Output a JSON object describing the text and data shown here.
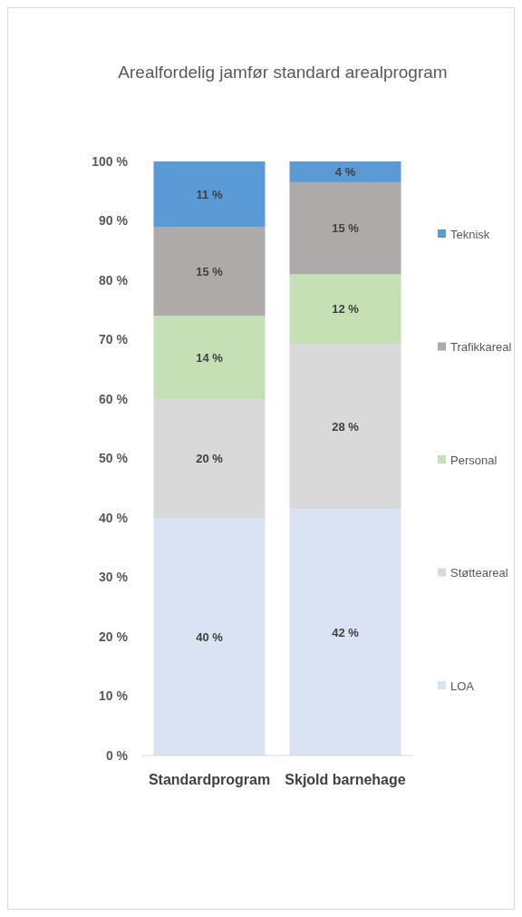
{
  "chart_data": {
    "type": "bar",
    "title": "Arealfordelig jamfør standard arealprogram",
    "categories": [
      "Standardprogram",
      "Skjold barnehage"
    ],
    "stacked": true,
    "series": [
      {
        "name": "LOA",
        "color": "#dae3f3",
        "values": [
          40,
          41.5
        ],
        "value_labels": [
          "40 %",
          "42 %"
        ]
      },
      {
        "name": "Støtteareal",
        "color": "#d9d9d9",
        "values": [
          20,
          27.8
        ],
        "value_labels": [
          "20 %",
          "28 %"
        ]
      },
      {
        "name": "Personal",
        "color": "#c5e0b4",
        "values": [
          14,
          11.7
        ],
        "value_labels": [
          "14 %",
          "12 %"
        ]
      },
      {
        "name": "Trafikkareal",
        "color": "#aeaaaa",
        "values": [
          15,
          15.5
        ],
        "value_labels": [
          "15 %",
          "15 %"
        ]
      },
      {
        "name": "Teknisk",
        "color": "#5b9bd5",
        "values": [
          11,
          3.5
        ],
        "value_labels": [
          "11 %",
          "4 %"
        ]
      }
    ],
    "ylim": [
      0,
      100
    ],
    "yticks": [
      {
        "value": 0,
        "label": "0 %"
      },
      {
        "value": 10,
        "label": "10 %"
      },
      {
        "value": 20,
        "label": "20 %"
      },
      {
        "value": 30,
        "label": "30 %"
      },
      {
        "value": 40,
        "label": "40 %"
      },
      {
        "value": 50,
        "label": "50 %"
      },
      {
        "value": 60,
        "label": "60 %"
      },
      {
        "value": 70,
        "label": "70 %"
      },
      {
        "value": 80,
        "label": "80 %"
      },
      {
        "value": 90,
        "label": "90 %"
      },
      {
        "value": 100,
        "label": "100 %"
      }
    ],
    "grid": false,
    "legend": "right"
  }
}
